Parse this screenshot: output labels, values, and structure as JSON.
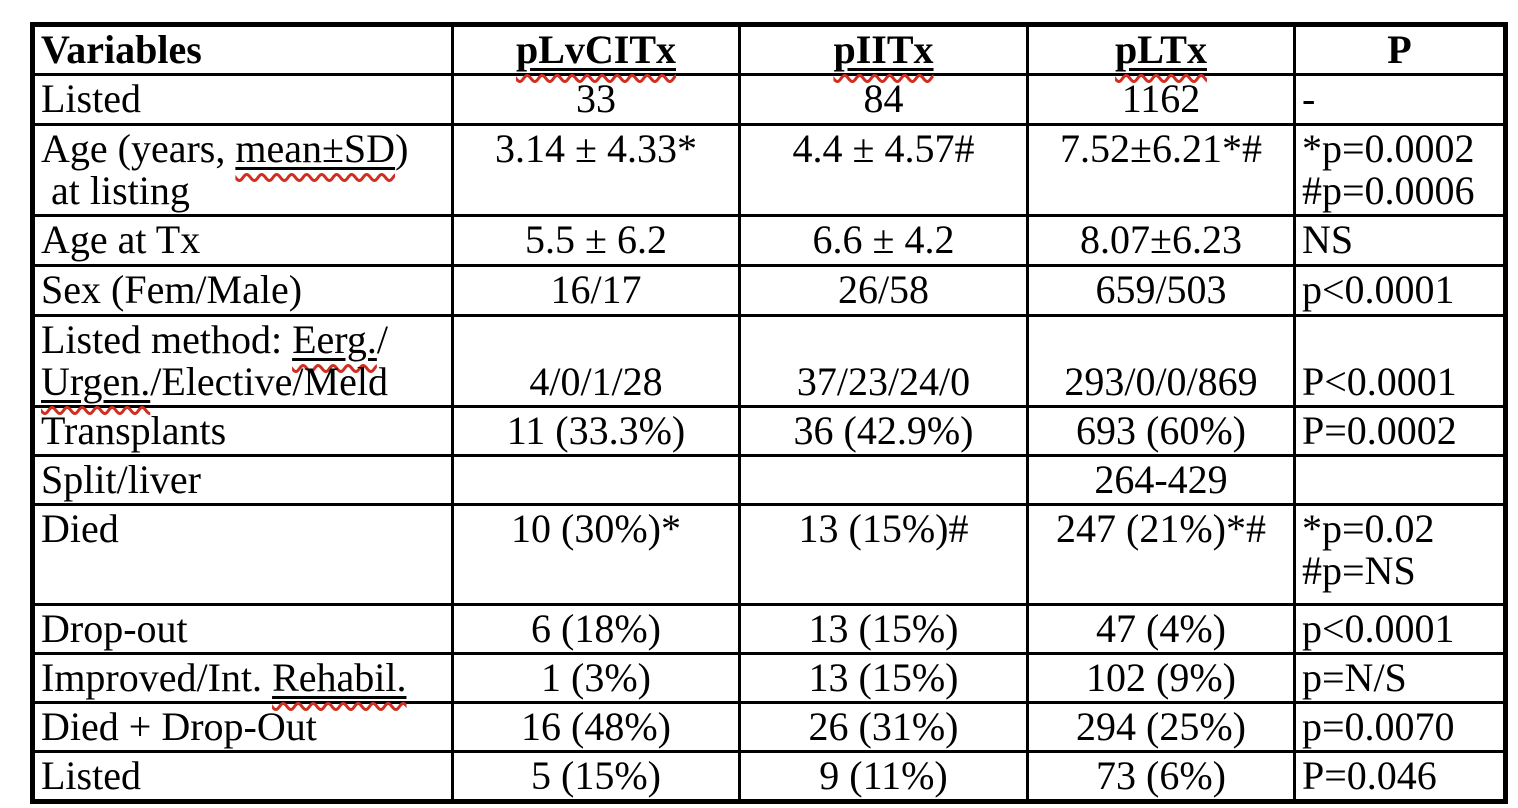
{
  "table": {
    "colors": {
      "text": "#000000",
      "border": "#000000",
      "spellcheck_squiggle": "#cf2e21",
      "background": "#ffffff"
    },
    "columns": [
      {
        "label": "Variables",
        "mark": false
      },
      {
        "label": "pLvCITx",
        "mark": true
      },
      {
        "label": "pIITx",
        "mark": true
      },
      {
        "label": "pLTx",
        "mark": true
      },
      {
        "label": "P",
        "mark": false
      }
    ],
    "rows": [
      {
        "name": "listed",
        "cells": [
          [
            [
              {
                "t": "Listed"
              }
            ]
          ],
          [
            [
              {
                "t": "33"
              }
            ]
          ],
          [
            [
              {
                "t": "84"
              }
            ]
          ],
          [
            [
              {
                "t": "1162"
              }
            ]
          ],
          [
            [
              {
                "t": "-"
              }
            ]
          ]
        ]
      },
      {
        "name": "age-at-listing",
        "cells": [
          [
            [
              {
                "t": "Age (years, "
              },
              {
                "t": "mean±SD",
                "mark": true
              },
              {
                "t": ")"
              }
            ],
            [
              {
                "t": " at listing"
              }
            ]
          ],
          [
            [
              {
                "t": "3.14 ± 4.33*"
              }
            ]
          ],
          [
            [
              {
                "t": "4.4 ± 4.57#"
              }
            ]
          ],
          [
            [
              {
                "t": "7.52±6.21*#"
              }
            ]
          ],
          [
            [
              {
                "t": "*p=0.0002"
              }
            ],
            [
              {
                "t": "#p=0.0006"
              }
            ]
          ]
        ]
      },
      {
        "name": "age-at-tx",
        "cells": [
          [
            [
              {
                "t": "Age at Tx"
              }
            ]
          ],
          [
            [
              {
                "t": "5.5 ± 6.2"
              }
            ]
          ],
          [
            [
              {
                "t": "6.6 ± 4.2"
              }
            ]
          ],
          [
            [
              {
                "t": "8.07±6.23"
              }
            ]
          ],
          [
            [
              {
                "t": "NS"
              }
            ]
          ]
        ]
      },
      {
        "name": "sex",
        "cells": [
          [
            [
              {
                "t": "Sex (Fem/Male)"
              }
            ]
          ],
          [
            [
              {
                "t": "16/17"
              }
            ]
          ],
          [
            [
              {
                "t": "26/58"
              }
            ]
          ],
          [
            [
              {
                "t": "659/503"
              }
            ]
          ],
          [
            [
              {
                "t": "p<0.0001"
              }
            ]
          ]
        ]
      },
      {
        "name": "listed-method",
        "cells": [
          [
            [
              {
                "t": "Listed method: "
              },
              {
                "t": "Eerg.",
                "mark": true
              },
              {
                "t": "/"
              }
            ],
            [
              {
                "t": "Urgen.",
                "mark": true
              },
              {
                "t": "/Elective/Meld"
              }
            ]
          ],
          [
            [
              {
                "t": "4/0/1/28"
              }
            ]
          ],
          [
            [
              {
                "t": "37/23/24/0"
              }
            ]
          ],
          [
            [
              {
                "t": "293/0/0/869"
              }
            ]
          ],
          [
            [
              {
                "t": "P<0.0001"
              }
            ]
          ]
        ]
      },
      {
        "name": "transplants",
        "cells": [
          [
            [
              {
                "t": "Transplants"
              }
            ]
          ],
          [
            [
              {
                "t": "11 (33.3%)"
              }
            ]
          ],
          [
            [
              {
                "t": "36 (42.9%)"
              }
            ]
          ],
          [
            [
              {
                "t": "693 (60%)"
              }
            ]
          ],
          [
            [
              {
                "t": "P=0.0002"
              }
            ]
          ]
        ]
      },
      {
        "name": "split-liver",
        "cells": [
          [
            [
              {
                "t": "Split/liver"
              }
            ]
          ],
          [],
          [],
          [
            [
              {
                "t": "264-429"
              }
            ]
          ],
          []
        ]
      },
      {
        "name": "died",
        "cells": [
          [
            [
              {
                "t": "Died"
              }
            ]
          ],
          [
            [
              {
                "t": "10 (30%)*"
              }
            ]
          ],
          [
            [
              {
                "t": "13 (15%)#"
              }
            ]
          ],
          [
            [
              {
                "t": "247 (21%)*#"
              }
            ]
          ],
          [
            [
              {
                "t": "*p=0.02"
              }
            ],
            [
              {
                "t": "#p=NS"
              }
            ]
          ]
        ]
      },
      {
        "name": "drop-out",
        "cells": [
          [
            [
              {
                "t": "Drop-out"
              }
            ]
          ],
          [
            [
              {
                "t": "6 (18%)"
              }
            ]
          ],
          [
            [
              {
                "t": "13 (15%)"
              }
            ]
          ],
          [
            [
              {
                "t": "47 (4%)"
              }
            ]
          ],
          [
            [
              {
                "t": "p<0.0001"
              }
            ]
          ]
        ]
      },
      {
        "name": "improved-int-rehabil",
        "cells": [
          [
            [
              {
                "t": "Improved/Int. "
              },
              {
                "t": "Rehabil.",
                "mark": true
              }
            ]
          ],
          [
            [
              {
                "t": "1 (3%)"
              }
            ]
          ],
          [
            [
              {
                "t": "13 (15%)"
              }
            ]
          ],
          [
            [
              {
                "t": "102 (9%)"
              }
            ]
          ],
          [
            [
              {
                "t": "p=N/S"
              }
            ]
          ]
        ]
      },
      {
        "name": "died-plus-drop-out",
        "cells": [
          [
            [
              {
                "t": "Died + Drop-Out"
              }
            ]
          ],
          [
            [
              {
                "t": "16 (48%)"
              }
            ]
          ],
          [
            [
              {
                "t": "26 (31%)"
              }
            ]
          ],
          [
            [
              {
                "t": "294 (25%)"
              }
            ]
          ],
          [
            [
              {
                "t": "p=0.0070"
              }
            ]
          ]
        ]
      },
      {
        "name": "listed-end",
        "cells": [
          [
            [
              {
                "t": "Listed"
              }
            ]
          ],
          [
            [
              {
                "t": "5 (15%)"
              }
            ]
          ],
          [
            [
              {
                "t": "9 (11%)"
              }
            ]
          ],
          [
            [
              {
                "t": "73 (6%)"
              }
            ]
          ],
          [
            [
              {
                "t": "P=0.046"
              }
            ]
          ]
        ]
      }
    ]
  }
}
